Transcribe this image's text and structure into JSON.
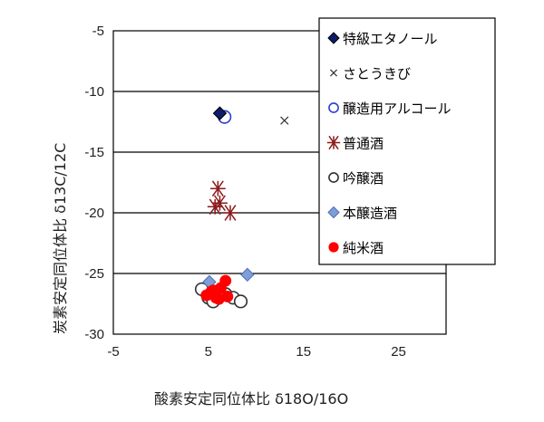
{
  "chart_data": {
    "type": "scatter",
    "xlabel": "酸素安定同位体比 δ18O/16O",
    "ylabel": "炭素安定同位体比 δ13C/12C",
    "xlim": [
      -5,
      30
    ],
    "ylim": [
      -30,
      -5
    ],
    "x_ticks": [
      "-5",
      "5",
      "15",
      "25"
    ],
    "y_ticks": [
      "-5",
      "-10",
      "-15",
      "-20",
      "-25",
      "-30"
    ],
    "grid": "horizontal",
    "legend_position": "right",
    "series": [
      {
        "name": "特級エタノール",
        "marker": "diamond-filled",
        "color": "#0b1d6b",
        "points": [
          [
            6.2,
            -11.8
          ]
        ]
      },
      {
        "name": "さとうきび",
        "marker": "x",
        "color": "#333333",
        "points": [
          [
            13.0,
            -12.4
          ]
        ]
      },
      {
        "name": "醸造用アルコール",
        "marker": "circle-open",
        "color": "#2f3fcf",
        "points": [
          [
            6.7,
            -12.1
          ]
        ]
      },
      {
        "name": "普通酒",
        "marker": "asterisk",
        "color": "#8b1a1a",
        "points": [
          [
            6.0,
            -18.0
          ],
          [
            6.2,
            -19.2
          ],
          [
            5.7,
            -19.5
          ],
          [
            7.3,
            -20.0
          ]
        ]
      },
      {
        "name": "吟醸酒",
        "marker": "circle-open",
        "color": "#333333",
        "points": [
          [
            4.3,
            -26.3
          ],
          [
            5.0,
            -27.0
          ],
          [
            5.5,
            -27.3
          ],
          [
            6.8,
            -26.7
          ],
          [
            7.6,
            -27.0
          ],
          [
            8.4,
            -27.3
          ]
        ]
      },
      {
        "name": "本醸造酒",
        "marker": "diamond-filled",
        "color": "#7f9ed6",
        "points": [
          [
            5.1,
            -25.7
          ],
          [
            9.1,
            -25.1
          ]
        ]
      },
      {
        "name": "純米酒",
        "marker": "circle-filled",
        "color": "#ff0000",
        "points": [
          [
            4.8,
            -26.8
          ],
          [
            5.3,
            -26.5
          ],
          [
            5.8,
            -27.0
          ],
          [
            6.3,
            -26.2
          ],
          [
            6.8,
            -25.6
          ],
          [
            7.0,
            -26.9
          ],
          [
            6.1,
            -27.1
          ],
          [
            5.5,
            -26.4
          ]
        ]
      }
    ]
  }
}
